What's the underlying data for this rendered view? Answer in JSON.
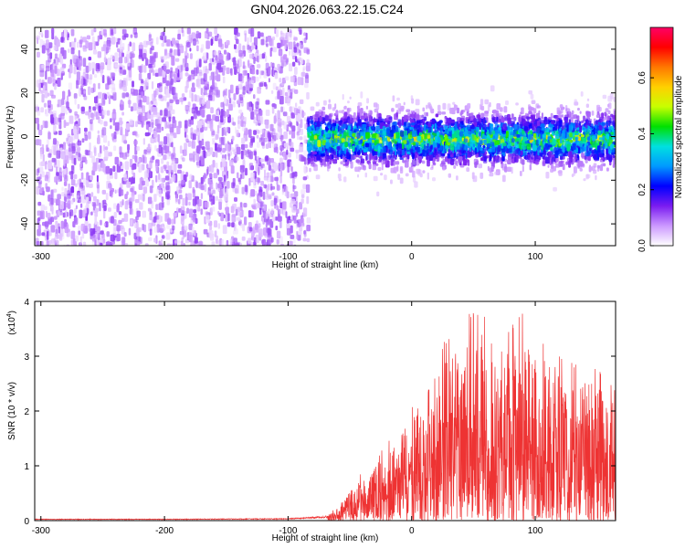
{
  "title": "GN04.2026.063.22.15.C24",
  "chart_data": [
    {
      "type": "heatmap",
      "title": "GN04.2026.063.22.15.C24",
      "xlabel": "Height of straight line (km)",
      "ylabel": "Frequency (Hz)",
      "xlim": [
        -305,
        165
      ],
      "ylim": [
        -50,
        50
      ],
      "xticks": [
        "-300",
        "-200",
        "-100",
        "0",
        "100"
      ],
      "xtick_values": [
        -300,
        -200,
        -100,
        0,
        100
      ],
      "yticks": [
        "-40",
        "-20",
        "0",
        "20",
        "40"
      ],
      "ytick_values": [
        -40,
        -20,
        0,
        20,
        40
      ],
      "colorbar": {
        "label": "Normalized spectral amplitude",
        "range": [
          0,
          0.78
        ],
        "ticks": [
          "0.0",
          "0.2",
          "0.4",
          "0.6"
        ],
        "tick_values": [
          0.0,
          0.2,
          0.4,
          0.6
        ],
        "colors": [
          "#ffffff",
          "#cc99ff",
          "#7a1cf0",
          "#0000ff",
          "#0099ff",
          "#00e0e0",
          "#00e000",
          "#c8ff00",
          "#ffd000",
          "#ff7700",
          "#ff0000",
          "#ff0066"
        ]
      },
      "regions": [
        {
          "x_range": [
            -305,
            -85
          ],
          "y_range": [
            -50,
            50
          ],
          "amplitude": 0.05,
          "pattern": "broadband purple speckle"
        },
        {
          "x_range": [
            -85,
            165
          ],
          "center_frequency": 0,
          "half_width_hz": 12,
          "peak_amplitude": 0.45,
          "pattern": "narrow band around 0 Hz"
        }
      ]
    },
    {
      "type": "area",
      "xlabel": "Height of straight line (km)",
      "ylabel": "SNR (10 * v/v)",
      "scale_label": "(x10",
      "scale_exponent": "4",
      "xlim": [
        -305,
        165
      ],
      "ylim": [
        0,
        4
      ],
      "xticks": [
        "-300",
        "-200",
        "-100",
        "0",
        "100"
      ],
      "xtick_values": [
        -300,
        -200,
        -100,
        0,
        100
      ],
      "yticks": [
        "0",
        "1",
        "2",
        "3",
        "4"
      ],
      "ytick_values": [
        0,
        1,
        2,
        3,
        4
      ],
      "color": "#ee3333",
      "series": [
        {
          "x": [
            -305,
            -200,
            -100,
            -70,
            -60,
            -50,
            -40,
            -30,
            -20,
            -10,
            0,
            10,
            20,
            30,
            40,
            50,
            60,
            70,
            80,
            90,
            100,
            110,
            120,
            130,
            140,
            150,
            160,
            165
          ],
          "envelope": [
            0.03,
            0.03,
            0.04,
            0.08,
            0.25,
            0.65,
            0.9,
            1.1,
            1.45,
            1.8,
            2.1,
            2.6,
            3.0,
            3.4,
            3.6,
            3.9,
            3.85,
            3.5,
            3.6,
            3.9,
            3.35,
            3.3,
            3.1,
            2.9,
            2.9,
            2.8,
            2.55,
            2.4
          ]
        }
      ]
    }
  ]
}
